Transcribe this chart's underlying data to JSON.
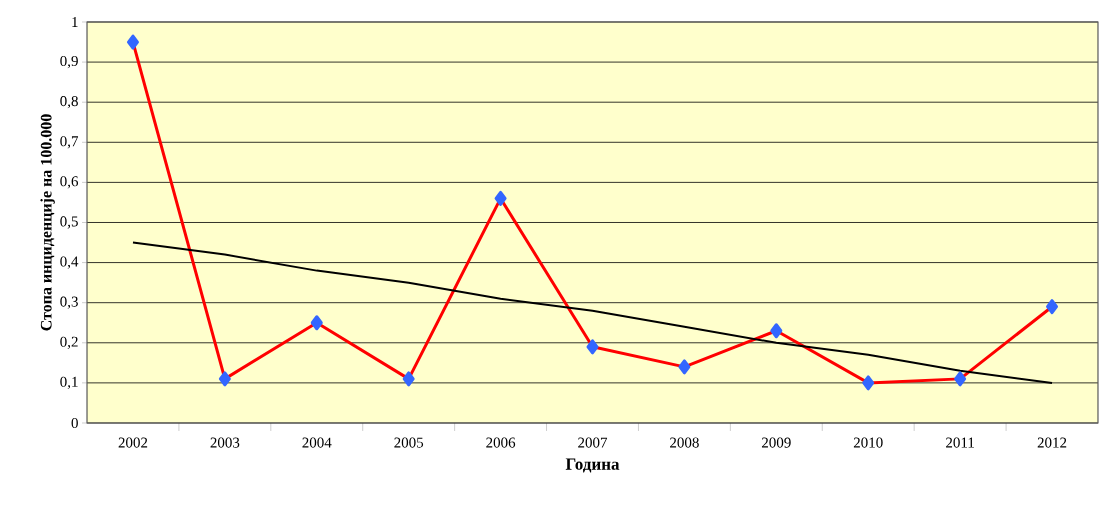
{
  "chart_data": {
    "type": "line",
    "xlabel": "Година",
    "ylabel": "Стопа инциденције на 100.000",
    "categories": [
      "2002",
      "2003",
      "2004",
      "2005",
      "2006",
      "2007",
      "2008",
      "2009",
      "2010",
      "2011",
      "2012"
    ],
    "series": [
      {
        "color": "#ff0000",
        "values": [
          0.95,
          0.11,
          0.25,
          0.11,
          0.56,
          0.19,
          0.14,
          0.23,
          0.1,
          0.11,
          0.29
        ],
        "marker": "diamond"
      },
      {
        "type": "line",
        "color": "#000000",
        "values": [
          0.45,
          0.42,
          0.38,
          0.35,
          0.31,
          0.28,
          0.24,
          0.2,
          0.17,
          0.13,
          0.1
        ],
        "marker": "none"
      }
    ],
    "ylim": [
      0,
      1
    ],
    "yticks": [
      0,
      {
        "value": 0.1,
        "label": "0,1"
      },
      {
        "value": 0.2,
        "label": "0,2"
      },
      {
        "value": 0.3,
        "label": "0,3"
      },
      {
        "value": 0.4,
        "label": "0,4"
      },
      {
        "value": 0.5,
        "label": "0,5"
      },
      {
        "value": 0.6,
        "label": "0,6"
      },
      {
        "value": 0.7,
        "label": "0,7"
      },
      {
        "value": 0.8,
        "label": "0,8"
      },
      {
        "value": 0.9,
        "label": "0,9"
      },
      1
    ],
    "grid": "y"
  }
}
